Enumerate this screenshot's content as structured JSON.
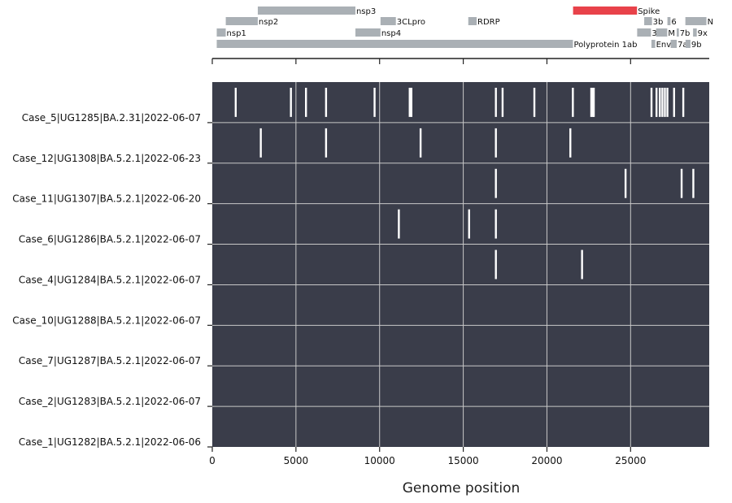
{
  "chart_data": {
    "type": "heatmap",
    "xlabel": "Genome position",
    "xlim": [
      0,
      29700
    ],
    "x_ticks": [
      0,
      5000,
      10000,
      15000,
      20000,
      25000
    ],
    "grid": true,
    "colors": {
      "panel_bg": "#3a3d4a",
      "grid": "#c8c8c8",
      "mutation_tick": "#ffffff",
      "gene": "#aab0b5",
      "spike": "#e8424a"
    },
    "rows": [
      {
        "label": "Case_5|UG1285|BA.2.31|2022-06-07",
        "positions": [
          1400,
          4700,
          5600,
          6800,
          9700,
          11800,
          11900,
          16950,
          17350,
          19250,
          21550,
          22650,
          22750,
          22800,
          26250,
          26550,
          26750,
          26900,
          27050,
          27200,
          27600,
          28150
        ]
      },
      {
        "label": "Case_12|UG1308|BA.5.2.1|2022-06-23",
        "positions": [
          2900,
          6800,
          12450,
          16950,
          21400
        ]
      },
      {
        "label": "Case_11|UG1307|BA.5.2.1|2022-06-20",
        "positions": [
          16950,
          24700,
          28050,
          28750
        ]
      },
      {
        "label": "Case_6|UG1286|BA.5.2.1|2022-06-07",
        "positions": [
          11150,
          15350,
          16950
        ]
      },
      {
        "label": "Case_4|UG1284|BA.5.2.1|2022-06-07",
        "positions": [
          16950,
          22100
        ]
      },
      {
        "label": "Case_10|UG1288|BA.5.2.1|2022-06-07",
        "positions": []
      },
      {
        "label": "Case_7|UG1287|BA.5.2.1|2022-06-07",
        "positions": []
      },
      {
        "label": "Case_2|UG1283|BA.5.2.1|2022-06-07",
        "positions": []
      },
      {
        "label": "Case_1|UG1282|BA.5.2.1|2022-06-06",
        "positions": []
      }
    ],
    "genes": [
      {
        "name": "Polyprotein 1ab",
        "start": 266,
        "end": 21555,
        "lane": 0
      },
      {
        "name": "Env",
        "start": 26245,
        "end": 26472,
        "lane": 0
      },
      {
        "name": "7a",
        "start": 27394,
        "end": 27759,
        "lane": 0
      },
      {
        "name": "9b",
        "start": 28284,
        "end": 28577,
        "lane": 0
      },
      {
        "name": "nsp1",
        "start": 266,
        "end": 805,
        "lane": 1
      },
      {
        "name": "nsp4",
        "start": 8555,
        "end": 10054,
        "lane": 1
      },
      {
        "name": "3a",
        "start": 25393,
        "end": 26220,
        "lane": 1
      },
      {
        "name": "M",
        "start": 26523,
        "end": 27191,
        "lane": 1
      },
      {
        "name": "7b",
        "start": 27756,
        "end": 27887,
        "lane": 1
      },
      {
        "name": "9x",
        "start": 28734,
        "end": 28955,
        "lane": 1
      },
      {
        "name": "nsp2",
        "start": 806,
        "end": 2719,
        "lane": 2
      },
      {
        "name": "3CLpro",
        "start": 10055,
        "end": 10972,
        "lane": 2
      },
      {
        "name": "RDRP",
        "start": 15300,
        "end": 15800,
        "lane": 2
      },
      {
        "name": "3b",
        "start": 25814,
        "end": 26281,
        "lane": 2
      },
      {
        "name": "6",
        "start": 27202,
        "end": 27387,
        "lane": 2
      },
      {
        "name": "N",
        "start": 28274,
        "end": 29533,
        "lane": 2
      },
      {
        "name": "nsp3",
        "start": 2720,
        "end": 8554,
        "lane": 3
      },
      {
        "name": "Spike",
        "start": 21563,
        "end": 25384,
        "lane": 3,
        "color": "#e8424a"
      }
    ]
  }
}
